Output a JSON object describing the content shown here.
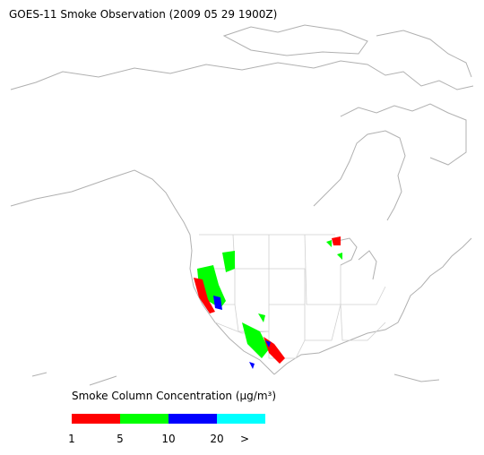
{
  "title": "GOES-11 Smoke Observation (2009 05 29  1900Z)",
  "legend": {
    "title": "Smoke Column Concentration (μg/m³)",
    "colors": [
      "#ff0000",
      "#00ff00",
      "#0000ff",
      "#00ffff"
    ],
    "labels": [
      "1",
      "5",
      "10",
      "20",
      ">"
    ]
  }
}
